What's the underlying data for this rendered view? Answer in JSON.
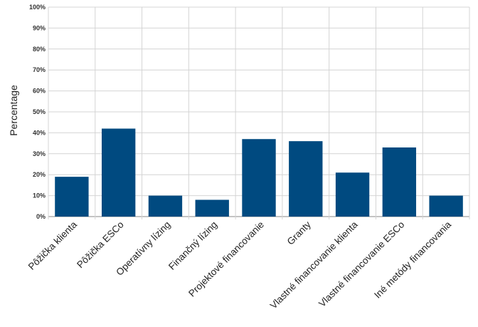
{
  "chart_data": {
    "type": "bar",
    "title": "",
    "xlabel": "",
    "ylabel": "Percentage",
    "ylim": [
      0,
      100
    ],
    "yticks": [
      "0%",
      "10%",
      "20%",
      "30%",
      "40%",
      "50%",
      "60%",
      "70%",
      "80%",
      "90%",
      "100%"
    ],
    "categories": [
      "Pôžička klienta",
      "Pôžička ESCo",
      "Operatívny lízing",
      "Finančný lízing",
      "Projektové financovanie",
      "Granty",
      "Vlastné financovanie klienta",
      "Vlastné financovanie ESCo",
      "Iné metódy financovania"
    ],
    "values": [
      19,
      42,
      10,
      8,
      37,
      36,
      21,
      33,
      10
    ],
    "bar_color": "#004a80",
    "grid": true,
    "legend": "none"
  }
}
